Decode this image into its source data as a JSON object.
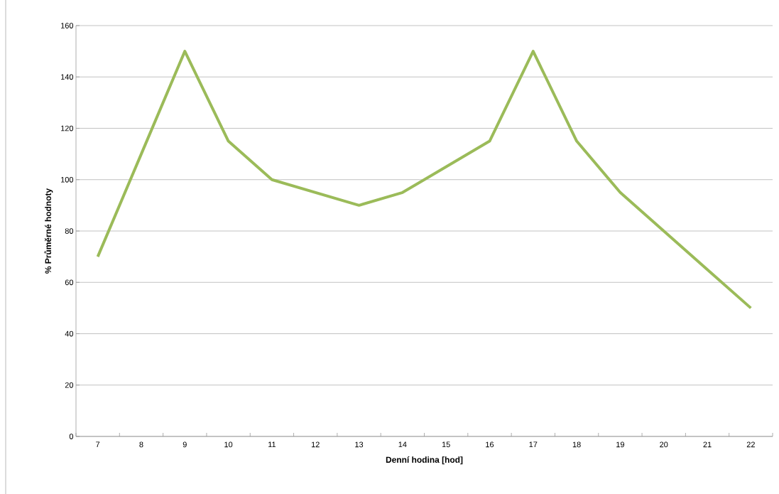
{
  "chart_data": {
    "type": "line",
    "xlabel": "Denní hodina [hod]",
    "ylabel": "% Průměrné hodnoty",
    "categories": [
      "7",
      "8",
      "9",
      "10",
      "11",
      "12",
      "13",
      "14",
      "15",
      "16",
      "17",
      "18",
      "19",
      "20",
      "21",
      "22"
    ],
    "series": [
      {
        "color": "#9bbb59",
        "values": [
          70,
          110,
          150,
          115,
          100,
          95,
          90,
          95,
          105,
          115,
          150,
          115,
          95,
          80,
          65,
          50
        ]
      }
    ],
    "ylim": [
      0,
      160
    ],
    "yticks": [
      0,
      20,
      40,
      60,
      80,
      100,
      120,
      140,
      160
    ],
    "grid": "y"
  }
}
